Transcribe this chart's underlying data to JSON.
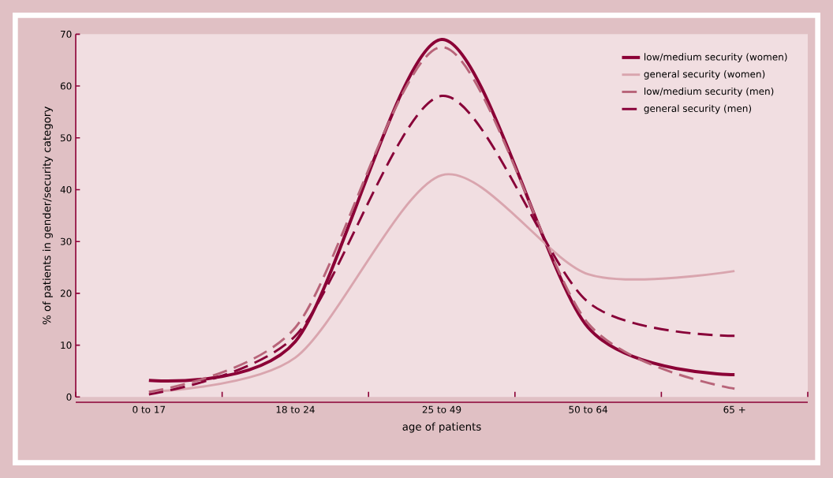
{
  "chart_data": {
    "type": "line",
    "xlabel": "age of patients",
    "ylabel": "% of patients in gender/security category",
    "categories": [
      "0 to 17",
      "18 to 24",
      "25 to 49",
      "50 to 64",
      "65 +"
    ],
    "ylim": [
      0,
      70
    ],
    "yticks": [
      0,
      10,
      20,
      30,
      40,
      50,
      60,
      70
    ],
    "grid": false,
    "legend": "top right",
    "marker": "none",
    "series": [
      {
        "name": "low/medium security (women)",
        "color": "#8b0036",
        "line_style": "solid",
        "values": [
          3.2,
          10.7,
          69.0,
          13.4,
          4.3
        ]
      },
      {
        "name": "general security  (women)",
        "color": "#d9a5ae",
        "line_style": "solid",
        "values": [
          1.0,
          7.6,
          42.8,
          23.7,
          24.3
        ]
      },
      {
        "name": "low/medium security (men)",
        "color": "#b86479",
        "line_style": "dashed",
        "values": [
          1.0,
          13.4,
          67.5,
          14.2,
          1.6
        ]
      },
      {
        "name": "general security (men)",
        "color": "#880038",
        "line_style": "dashed",
        "values": [
          0.5,
          11.8,
          58.1,
          18.3,
          11.8
        ]
      }
    ]
  }
}
